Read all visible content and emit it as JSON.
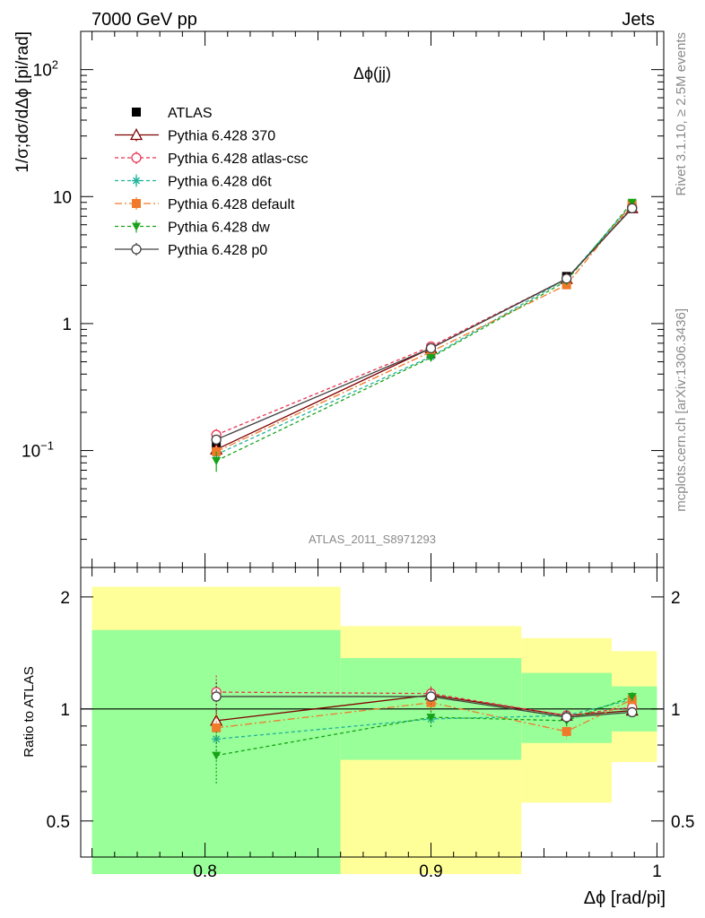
{
  "header": {
    "left": "7000 GeV pp",
    "right": "Jets",
    "side_top": "Rivet 3.1.10, ≥ 2.5M events",
    "side_bottom": "mcplots.cern.ch [arXiv:1306.3436]",
    "watermark": "ATLAS_2011_S8971293"
  },
  "chart_data": [
    {
      "type": "line",
      "title": "Δϕ(jj)",
      "ylabel": "1/σ;dσ/dΔϕ [pi/rad]",
      "yscale": "log",
      "ylim": [
        0.012,
        200
      ],
      "xlim": [
        0.745,
        1.003
      ],
      "y_ticks": [
        {
          "v": 0.1,
          "base": "10",
          "exp": "−1"
        },
        {
          "v": 1,
          "base": "1",
          "exp": ""
        },
        {
          "v": 10,
          "base": "10",
          "exp": ""
        },
        {
          "v": 100,
          "base": "10",
          "exp": "2"
        }
      ],
      "x": [
        0.805,
        0.9,
        0.96,
        0.989
      ],
      "series": [
        {
          "name": "ATLAS",
          "color": "#000000",
          "marker": "square-filled",
          "dash": "",
          "values": [
            0.11,
            0.58,
            2.35,
            8.2
          ],
          "errors": [
            0.012,
            0.05,
            0.12,
            0.35
          ]
        },
        {
          "name": "Pythia 6.428 370",
          "color": "#800000",
          "marker": "triangle-open",
          "dash": "",
          "values": [
            0.102,
            0.64,
            2.25,
            8.1
          ],
          "errors": [
            0.01,
            0.03,
            0.06,
            0.2
          ]
        },
        {
          "name": "Pythia 6.428 atlas-csc",
          "color": "#e8354f",
          "marker": "circle-open",
          "dash": "4,3",
          "values": [
            0.133,
            0.66,
            2.25,
            8.3
          ],
          "errors": [
            0.015,
            0.03,
            0.06,
            0.2
          ]
        },
        {
          "name": "Pythia 6.428 d6t",
          "color": "#1fb399",
          "marker": "star",
          "dash": "4,3",
          "values": [
            0.093,
            0.55,
            2.25,
            8.7
          ],
          "errors": [
            0.01,
            0.03,
            0.06,
            0.2
          ]
        },
        {
          "name": "Pythia 6.428 default",
          "color": "#f07a2a",
          "marker": "square-filled",
          "dash": "8,3,2,3",
          "values": [
            0.098,
            0.6,
            2.02,
            8.7
          ],
          "errors": [
            0.01,
            0.03,
            0.06,
            0.2
          ]
        },
        {
          "name": "Pythia 6.428 dw",
          "color": "#17a317",
          "marker": "triangle-down-filled",
          "dash": "4,3",
          "values": [
            0.083,
            0.54,
            2.17,
            9.0
          ],
          "errors": [
            0.015,
            0.03,
            0.06,
            0.2
          ]
        },
        {
          "name": "Pythia 6.428 p0",
          "color": "#404040",
          "marker": "circle-open",
          "dash": "",
          "values": [
            0.122,
            0.64,
            2.26,
            8.1
          ],
          "errors": [
            0.01,
            0.03,
            0.06,
            0.2
          ]
        }
      ]
    },
    {
      "type": "line",
      "ylabel": "Ratio to ATLAS",
      "xlabel": "Δϕ [rad/pi]",
      "yscale": "log",
      "ylim": [
        0.4,
        2.4
      ],
      "y_ticks": [
        0.5,
        1,
        2
      ],
      "x_ticks": [
        0.8,
        0.9,
        1
      ],
      "bins": [
        {
          "x0": 0.75,
          "x1": 0.86,
          "yellow": [
            0.36,
            2.13
          ],
          "green": [
            0.36,
            1.63
          ]
        },
        {
          "x0": 0.86,
          "x1": 0.94,
          "yellow": [
            0.36,
            1.67
          ],
          "green": [
            0.73,
            1.37
          ]
        },
        {
          "x0": 0.94,
          "x1": 0.98,
          "yellow": [
            0.56,
            1.55
          ],
          "green": [
            0.81,
            1.25
          ]
        },
        {
          "x0": 0.98,
          "x1": 1.0,
          "yellow": [
            0.72,
            1.43
          ],
          "green": [
            0.87,
            1.15
          ]
        }
      ],
      "x": [
        0.805,
        0.9,
        0.96,
        0.989
      ],
      "series": [
        {
          "name": "Pythia 6.428 370",
          "values": [
            0.93,
            1.09,
            0.96,
            0.99
          ],
          "errors": [
            0.07,
            0.05,
            0.04,
            0.03
          ]
        },
        {
          "name": "Pythia 6.428 atlas-csc",
          "values": [
            1.11,
            1.1,
            0.96,
            1.01
          ],
          "errors": [
            0.12,
            0.05,
            0.04,
            0.03
          ]
        },
        {
          "name": "Pythia 6.428 d6t",
          "values": [
            0.83,
            0.94,
            0.96,
            1.06
          ],
          "errors": [
            0.08,
            0.05,
            0.04,
            0.03
          ]
        },
        {
          "name": "Pythia 6.428 default",
          "values": [
            0.89,
            1.04,
            0.87,
            1.06
          ],
          "errors": [
            0.08,
            0.05,
            0.04,
            0.03
          ]
        },
        {
          "name": "Pythia 6.428 dw",
          "values": [
            0.75,
            0.95,
            0.93,
            1.08
          ],
          "errors": [
            0.12,
            0.06,
            0.04,
            0.03
          ]
        },
        {
          "name": "Pythia 6.428 p0",
          "values": [
            1.08,
            1.08,
            0.95,
            0.98
          ],
          "errors": [
            0.1,
            0.05,
            0.04,
            0.03
          ]
        }
      ]
    }
  ]
}
